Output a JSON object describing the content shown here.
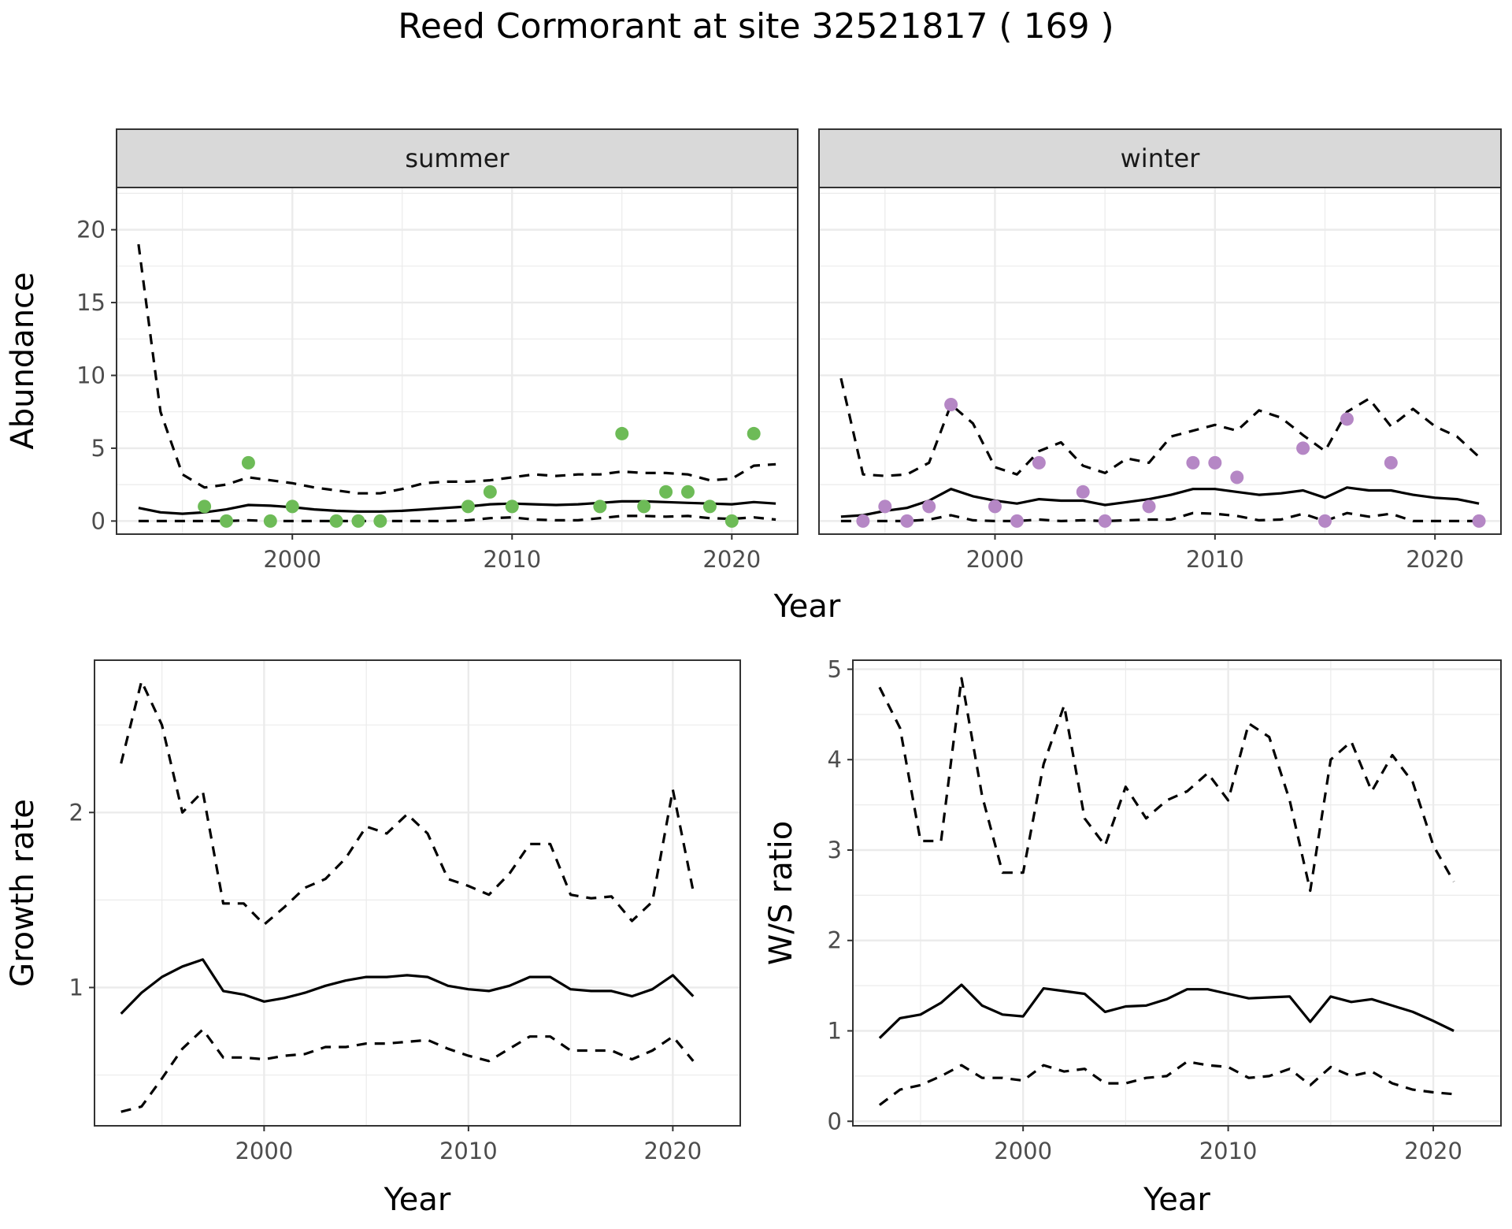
{
  "title": "Reed Cormorant at site 32521817 ( 169 )",
  "colors": {
    "summer_points": "#6dbb57",
    "winter_points": "#b587c5",
    "strip_fill": "#d9d9d9",
    "grid": "#ebebeb",
    "line": "#000000"
  },
  "chart_data": [
    {
      "type": "line",
      "panel": "summer",
      "strip_label": "summer",
      "xlabel": "Year",
      "ylabel": "Abundance",
      "xlim": [
        1992,
        2023
      ],
      "ylim": [
        -0.9,
        22.9
      ],
      "x_ticks": [
        2000,
        2010,
        2020
      ],
      "y_ticks": [
        0,
        5,
        10,
        15,
        20
      ],
      "x": [
        1993,
        1994,
        1995,
        1996,
        1997,
        1998,
        1999,
        2000,
        2001,
        2002,
        2003,
        2004,
        2005,
        2006,
        2007,
        2008,
        2009,
        2010,
        2011,
        2012,
        2013,
        2014,
        2015,
        2016,
        2017,
        2018,
        2019,
        2020,
        2021,
        2022
      ],
      "series": [
        {
          "role": "estimate",
          "style": "solid",
          "values": [
            0.9,
            0.6,
            0.5,
            0.6,
            0.8,
            1.1,
            1.05,
            0.95,
            0.8,
            0.7,
            0.65,
            0.65,
            0.7,
            0.8,
            0.9,
            1.0,
            1.15,
            1.2,
            1.15,
            1.1,
            1.15,
            1.25,
            1.35,
            1.35,
            1.3,
            1.25,
            1.2,
            1.15,
            1.3,
            1.2
          ]
        },
        {
          "role": "upper",
          "style": "dashed",
          "values": [
            19.0,
            7.5,
            3.2,
            2.3,
            2.5,
            3.0,
            2.8,
            2.6,
            2.3,
            2.1,
            1.9,
            1.9,
            2.2,
            2.6,
            2.7,
            2.7,
            2.8,
            3.0,
            3.2,
            3.1,
            3.2,
            3.2,
            3.4,
            3.3,
            3.3,
            3.2,
            2.8,
            2.9,
            3.8,
            3.9
          ]
        },
        {
          "role": "lower",
          "style": "dashed",
          "values": [
            0,
            0,
            0,
            0,
            0,
            0.05,
            0,
            0,
            0,
            0,
            0,
            0,
            0,
            0,
            0,
            0.05,
            0.2,
            0.25,
            0.1,
            0.05,
            0.05,
            0.2,
            0.35,
            0.35,
            0.3,
            0.35,
            0.2,
            0.15,
            0.25,
            0.1
          ]
        }
      ],
      "points": {
        "x": [
          1996,
          1997,
          1998,
          1999,
          2000,
          2002,
          2003,
          2004,
          2008,
          2009,
          2010,
          2014,
          2015,
          2016,
          2017,
          2018,
          2019,
          2020,
          2021
        ],
        "y": [
          1,
          0,
          4,
          0,
          1,
          0,
          0,
          0,
          1,
          2,
          1,
          1,
          6,
          1,
          2,
          2,
          1,
          0,
          6
        ]
      }
    },
    {
      "type": "line",
      "panel": "winter",
      "strip_label": "winter",
      "xlabel": "Year",
      "ylabel": "Abundance",
      "xlim": [
        1992,
        2023
      ],
      "ylim": [
        -0.9,
        22.9
      ],
      "x_ticks": [
        2000,
        2010,
        2020
      ],
      "y_ticks": [
        0,
        5,
        10,
        15,
        20
      ],
      "x": [
        1993,
        1994,
        1995,
        1996,
        1997,
        1998,
        1999,
        2000,
        2001,
        2002,
        2003,
        2004,
        2005,
        2006,
        2007,
        2008,
        2009,
        2010,
        2011,
        2012,
        2013,
        2014,
        2015,
        2016,
        2017,
        2018,
        2019,
        2020,
        2021,
        2022
      ],
      "series": [
        {
          "role": "estimate",
          "style": "solid",
          "values": [
            0.3,
            0.4,
            0.7,
            0.9,
            1.4,
            2.2,
            1.7,
            1.4,
            1.2,
            1.5,
            1.4,
            1.4,
            1.1,
            1.3,
            1.5,
            1.8,
            2.2,
            2.2,
            2.0,
            1.8,
            1.9,
            2.1,
            1.6,
            2.3,
            2.1,
            2.1,
            1.8,
            1.6,
            1.5,
            1.2
          ]
        },
        {
          "role": "upper",
          "style": "dashed",
          "values": [
            9.8,
            3.2,
            3.1,
            3.2,
            4.0,
            8.0,
            6.7,
            3.7,
            3.2,
            4.8,
            5.4,
            3.8,
            3.3,
            4.3,
            4.0,
            5.8,
            6.2,
            6.6,
            6.2,
            7.6,
            7.1,
            5.9,
            4.8,
            7.5,
            8.4,
            6.5,
            7.7,
            6.5,
            5.8,
            4.4
          ]
        },
        {
          "role": "lower",
          "style": "dashed",
          "values": [
            0,
            0,
            0,
            0,
            0.1,
            0.4,
            0.05,
            0,
            0,
            0.1,
            0,
            0.05,
            0,
            0.05,
            0.1,
            0.1,
            0.55,
            0.5,
            0.35,
            0.05,
            0.1,
            0.5,
            0,
            0.55,
            0.3,
            0.5,
            0,
            0,
            0,
            0
          ]
        }
      ],
      "points": {
        "x": [
          1994,
          1995,
          1996,
          1997,
          1998,
          2000,
          2001,
          2002,
          2004,
          2005,
          2007,
          2009,
          2010,
          2011,
          2014,
          2015,
          2016,
          2018,
          2022
        ],
        "y": [
          0,
          1,
          0,
          1,
          8,
          1,
          0,
          4,
          2,
          0,
          1,
          4,
          4,
          3,
          5,
          0,
          7,
          4,
          0
        ]
      }
    },
    {
      "type": "line",
      "panel": "growth",
      "xlabel": "Year",
      "ylabel": "Growth rate",
      "xlim": [
        1991.7,
        2023.3
      ],
      "ylim": [
        0.21,
        2.87
      ],
      "x_ticks": [
        2000,
        2010,
        2020
      ],
      "y_ticks": [
        1,
        2
      ],
      "x": [
        1993,
        1994,
        1995,
        1996,
        1997,
        1998,
        1999,
        2000,
        2001,
        2002,
        2003,
        2004,
        2005,
        2006,
        2007,
        2008,
        2009,
        2010,
        2011,
        2012,
        2013,
        2014,
        2015,
        2016,
        2017,
        2018,
        2019,
        2020,
        2021
      ],
      "series": [
        {
          "role": "estimate",
          "style": "solid",
          "values": [
            0.85,
            0.97,
            1.06,
            1.12,
            1.16,
            0.98,
            0.96,
            0.92,
            0.94,
            0.97,
            1.01,
            1.04,
            1.06,
            1.06,
            1.07,
            1.06,
            1.01,
            0.99,
            0.98,
            1.01,
            1.06,
            1.06,
            0.99,
            0.98,
            0.98,
            0.95,
            0.99,
            1.07,
            0.95
          ]
        },
        {
          "role": "upper",
          "style": "dashed",
          "values": [
            2.28,
            2.75,
            2.5,
            2.0,
            2.12,
            1.48,
            1.48,
            1.36,
            1.46,
            1.57,
            1.62,
            1.74,
            1.92,
            1.88,
            1.99,
            1.88,
            1.62,
            1.58,
            1.53,
            1.65,
            1.82,
            1.82,
            1.53,
            1.51,
            1.52,
            1.38,
            1.49,
            2.13,
            1.55
          ]
        },
        {
          "role": "lower",
          "style": "dashed",
          "values": [
            0.29,
            0.32,
            0.48,
            0.65,
            0.76,
            0.6,
            0.6,
            0.59,
            0.61,
            0.62,
            0.66,
            0.66,
            0.68,
            0.68,
            0.69,
            0.7,
            0.65,
            0.61,
            0.58,
            0.65,
            0.72,
            0.72,
            0.64,
            0.64,
            0.64,
            0.59,
            0.64,
            0.72,
            0.58
          ]
        }
      ]
    },
    {
      "type": "line",
      "panel": "ws_ratio",
      "xlabel": "Year",
      "ylabel": "W/S ratio",
      "xlim": [
        1991.7,
        2023.3
      ],
      "ylim": [
        -0.05,
        5.1
      ],
      "x_ticks": [
        2000,
        2010,
        2020
      ],
      "y_ticks": [
        0,
        1,
        2,
        3,
        4,
        5
      ],
      "x": [
        1993,
        1994,
        1995,
        1996,
        1997,
        1998,
        1999,
        2000,
        2001,
        2002,
        2003,
        2004,
        2005,
        2006,
        2007,
        2008,
        2009,
        2010,
        2011,
        2012,
        2013,
        2014,
        2015,
        2016,
        2017,
        2018,
        2019,
        2020,
        2021
      ],
      "series": [
        {
          "role": "estimate",
          "style": "solid",
          "values": [
            0.92,
            1.14,
            1.18,
            1.31,
            1.51,
            1.28,
            1.18,
            1.16,
            1.47,
            1.44,
            1.41,
            1.21,
            1.27,
            1.28,
            1.35,
            1.46,
            1.46,
            1.41,
            1.36,
            1.37,
            1.38,
            1.1,
            1.38,
            1.32,
            1.35,
            1.28,
            1.21,
            1.11,
            1.0
          ]
        },
        {
          "role": "upper",
          "style": "dashed",
          "values": [
            4.8,
            4.35,
            3.1,
            3.1,
            4.9,
            3.6,
            2.75,
            2.75,
            3.95,
            4.6,
            3.35,
            3.05,
            3.7,
            3.35,
            3.55,
            3.65,
            3.85,
            3.55,
            4.4,
            4.25,
            3.55,
            2.55,
            4.0,
            4.2,
            3.65,
            4.05,
            3.75,
            3.05,
            2.65
          ]
        },
        {
          "role": "lower",
          "style": "dashed",
          "values": [
            0.18,
            0.35,
            0.4,
            0.5,
            0.62,
            0.48,
            0.48,
            0.45,
            0.62,
            0.55,
            0.58,
            0.42,
            0.42,
            0.48,
            0.5,
            0.66,
            0.62,
            0.6,
            0.48,
            0.5,
            0.58,
            0.4,
            0.6,
            0.5,
            0.55,
            0.42,
            0.35,
            0.32,
            0.3
          ]
        }
      ]
    }
  ]
}
